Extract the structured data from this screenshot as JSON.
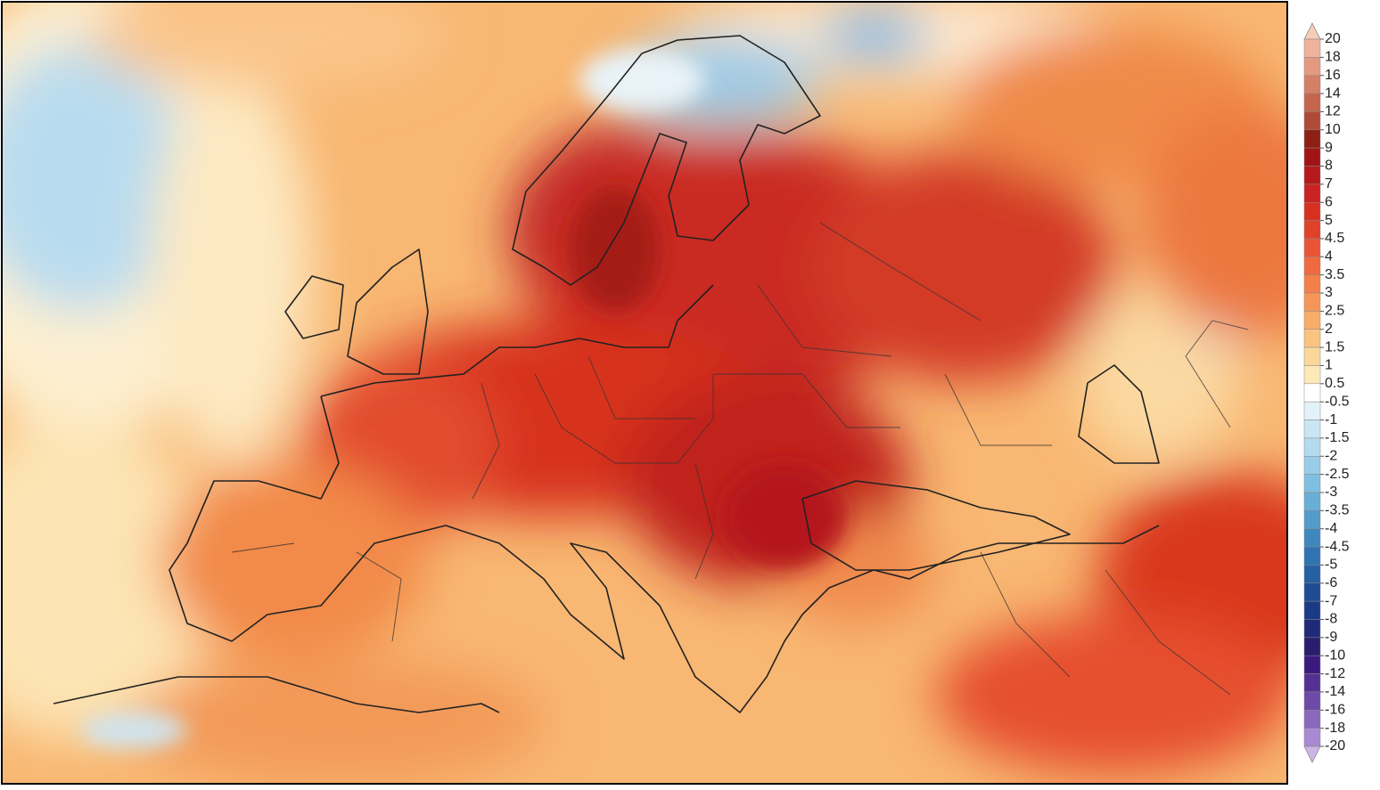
{
  "colorbar": {
    "labels": [
      20,
      18,
      16,
      14,
      12,
      10,
      9,
      8,
      7,
      6,
      5,
      4.5,
      4,
      3.5,
      3,
      2.5,
      2,
      1.5,
      1,
      0.5,
      -0.5,
      -1,
      -1.5,
      -2,
      -2.5,
      -3,
      -3.5,
      -4,
      -4.5,
      -5,
      -6,
      -7,
      -8,
      -9,
      -10,
      -12,
      -14,
      -16,
      -18,
      -20
    ],
    "colors": [
      "#f6cdb8",
      "#eeb39c",
      "#e39a80",
      "#d58066",
      "#c4654e",
      "#b04a38",
      "#8e1f14",
      "#a01418",
      "#b5191c",
      "#c92222",
      "#d7301f",
      "#e0412a",
      "#e85535",
      "#ef6a3e",
      "#f3804a",
      "#f59658",
      "#f8ad6a",
      "#fac381",
      "#fcd79a",
      "#fde9b8",
      "#ffffff",
      "#e3f1f8",
      "#cbe6f3",
      "#b3daee",
      "#9acde7",
      "#80bfdf",
      "#68aed5",
      "#529cca",
      "#3f88be",
      "#3073b1",
      "#2560a3",
      "#1d4c95",
      "#1a3a86",
      "#1f2a78",
      "#2b1d6e",
      "#3b1a80",
      "#553094",
      "#6e4aa8",
      "#8a68bd",
      "#a98ad2",
      "#cbb5e6"
    ]
  }
}
